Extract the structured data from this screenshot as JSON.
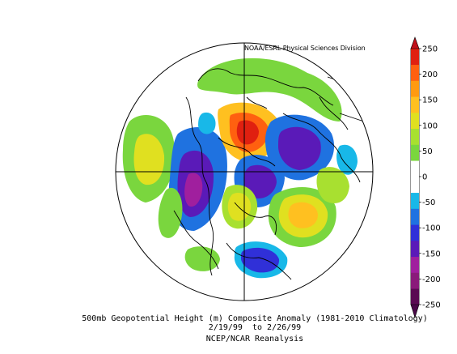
{
  "figure": {
    "credit": "NOAA/ESRL Physical Sciences Division",
    "caption_line1": "500mb Geopotential Height (m) Composite Anomaly (1981-2010 Climatology)",
    "caption_line2": "2/19/99  to 2/26/99",
    "caption_line3": "NCEP/NCAR Reanalysis"
  },
  "colorbar": {
    "orientation": "vertical",
    "range": [
      -250,
      250
    ],
    "ticks": [
      "250",
      "200",
      "150",
      "100",
      "50",
      "0",
      "-50",
      "-100",
      "-150",
      "-200",
      "-250"
    ],
    "colors": [
      "#5a0a52",
      "#8a1a7a",
      "#a01f9e",
      "#5a1ab8",
      "#3030d8",
      "#1f72e0",
      "#18b8e8",
      "#ffffff",
      "#ffffff",
      "#7ad63e",
      "#a8e030",
      "#e0e020",
      "#ffc020",
      "#ff9a10",
      "#ff6010",
      "#e02010"
    ]
  },
  "map": {
    "projection": "north-polar-stereographic",
    "anomalies": [
      {
        "sign": "positive",
        "level": 250,
        "region": "Arctic / north of Siberia"
      },
      {
        "sign": "positive",
        "level": 150,
        "region": "North Atlantic"
      },
      {
        "sign": "positive",
        "level": 100,
        "region": "Central North Pacific"
      },
      {
        "sign": "positive",
        "level": 50,
        "region": "Eurasia / Europe"
      },
      {
        "sign": "negative",
        "level": -150,
        "region": "Northeastern Pacific / Western North America"
      },
      {
        "sign": "negative",
        "level": -150,
        "region": "Eastern Canada / Greenland"
      },
      {
        "sign": "negative",
        "level": -150,
        "region": "Eastern Siberia"
      },
      {
        "sign": "negative",
        "level": -100,
        "region": "Western Europe / Mediterranean"
      }
    ]
  }
}
